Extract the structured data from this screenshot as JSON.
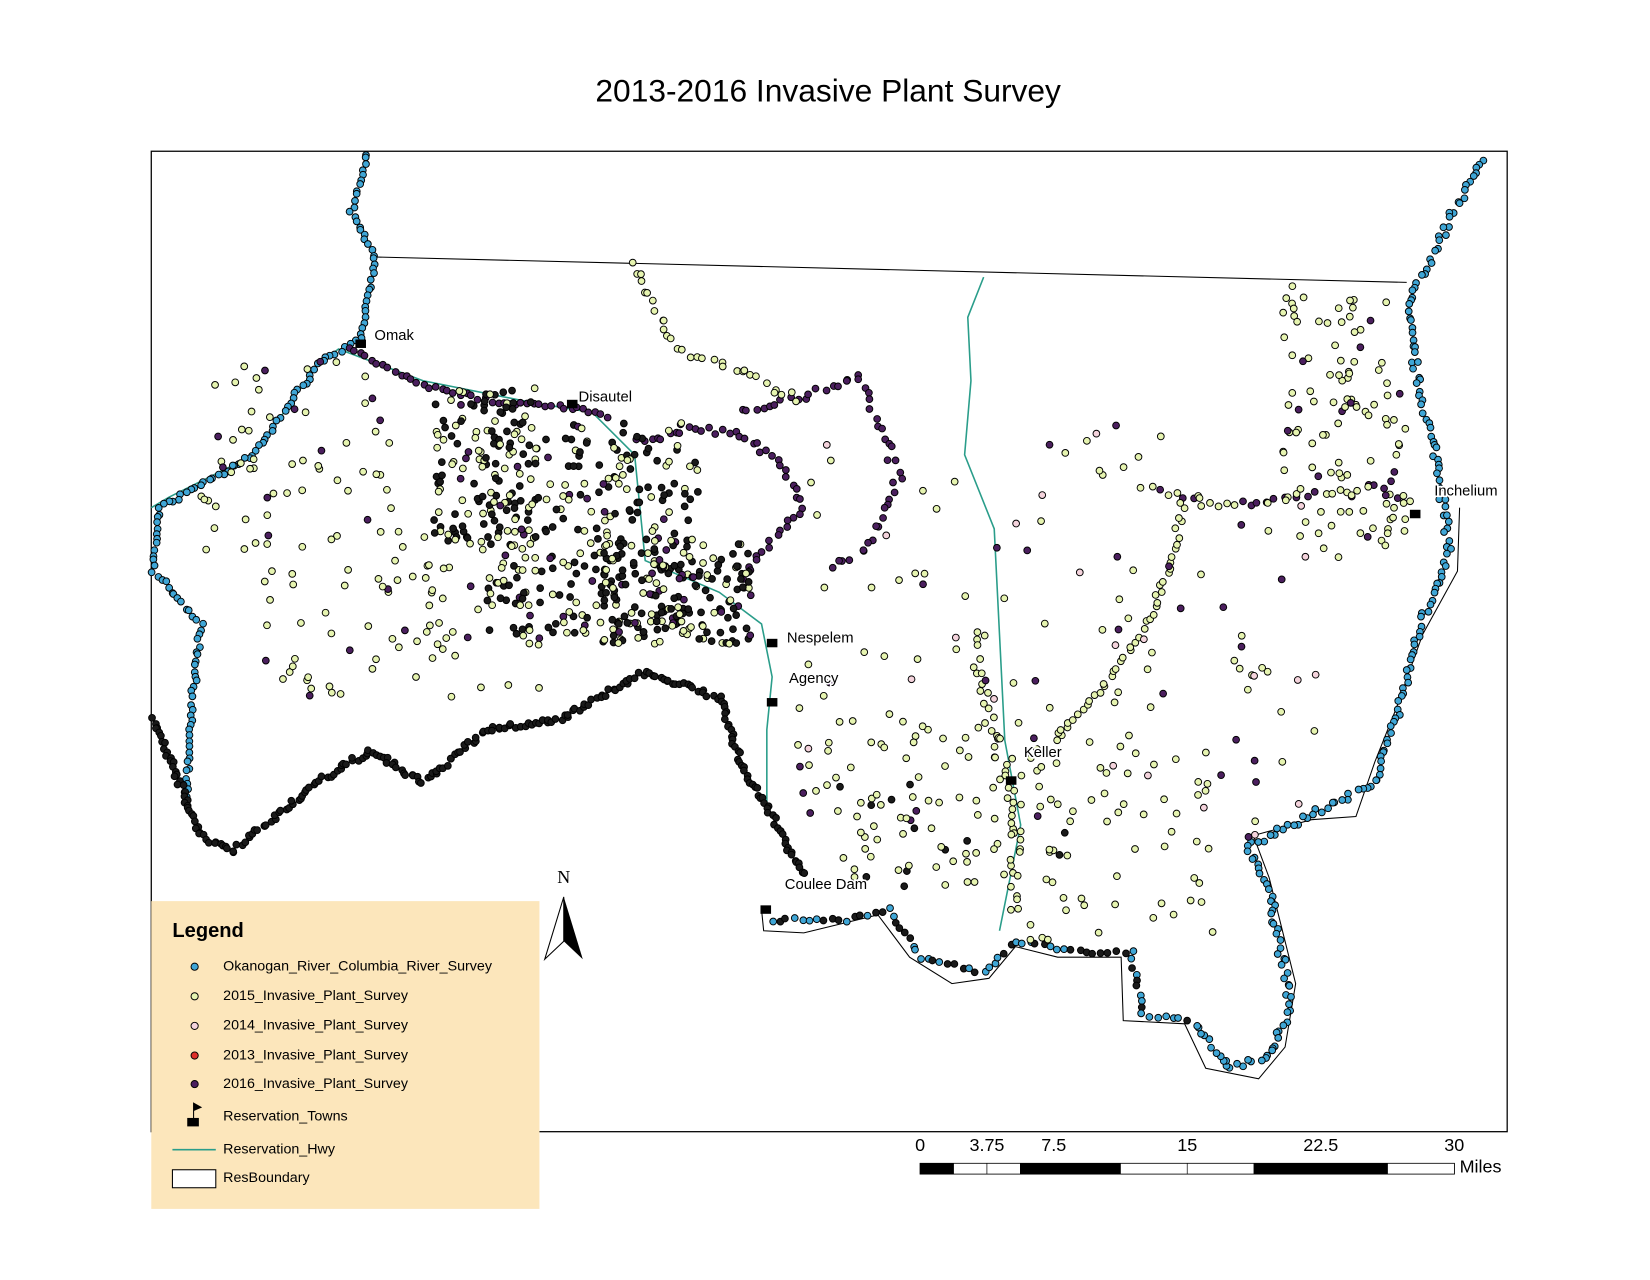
{
  "title": "2013-2016 Invasive Plant Survey",
  "towns": [
    "Omak",
    "Disautel",
    "Nespelem",
    "Agency",
    "Keller",
    "Coulee Dam",
    "Inchelium"
  ],
  "north_arrow": "N",
  "legend": {
    "title": "Legend",
    "items": [
      {
        "label": "Okanogan_River_Columbia_River_Survey",
        "color": "#3fa6d6"
      },
      {
        "label": "2015_Invasive_Plant_Survey",
        "color": "#e6f4b0"
      },
      {
        "label": "2014_Invasive_Plant_Survey",
        "color": "#f4d3dc"
      },
      {
        "label": "2013_Invasive_Plant_Survey",
        "color": "#e0302a"
      },
      {
        "label": "2016_Invasive_Plant_Survey",
        "color": "#4b1f5e"
      },
      {
        "label": "Reservation_Towns",
        "color": "#000000"
      },
      {
        "label": "Reservation_Hwy",
        "color": "#2a9d8a"
      },
      {
        "label": "ResBoundary",
        "color": "#ffffff"
      }
    ]
  },
  "scale_bar": {
    "ticks": [
      0,
      3.75,
      7.5,
      15,
      22.5,
      30
    ],
    "unit": "Miles"
  }
}
